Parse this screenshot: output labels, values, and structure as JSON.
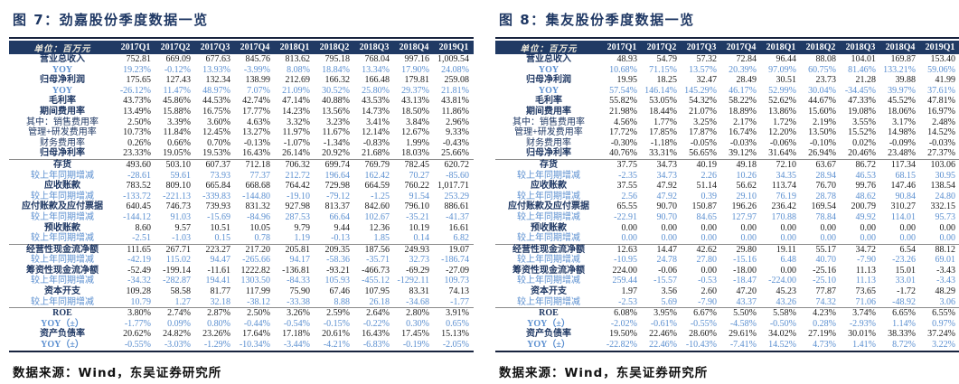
{
  "colors": {
    "navy": "#1F3864",
    "header_bg": "#203A64",
    "blue": "#5B8FD0",
    "rule": "#18243F"
  },
  "unit_label": "单位：百万元",
  "source_label": "数据来源：Wind，东吴证券研究所",
  "columns": [
    "2017Q1",
    "2017Q2",
    "2017Q3",
    "2017Q4",
    "2018Q1",
    "2018Q2",
    "2018Q3",
    "2018Q4",
    "2019Q1"
  ],
  "tables": [
    {
      "title": "图 7：劲嘉股份季度数据一览",
      "rows": [
        {
          "label": "营业总收入",
          "type": "metric",
          "values": [
            "752.81",
            "669.09",
            "677.63",
            "845.76",
            "813.62",
            "795.18",
            "768.04",
            "997.16",
            "1,009.54"
          ]
        },
        {
          "label": "YOY",
          "type": "yoy",
          "values": [
            "19.23%",
            "-0.12%",
            "13.93%",
            "-3.99%",
            "8.08%",
            "18.84%",
            "13.34%",
            "17.90%",
            "24.08%"
          ]
        },
        {
          "label": "归母净利润",
          "type": "metric",
          "values": [
            "175.65",
            "127.43",
            "132.34",
            "138.99",
            "212.69",
            "166.32",
            "166.48",
            "179.81",
            "259.08"
          ]
        },
        {
          "label": "YOY",
          "type": "yoy",
          "values": [
            "-26.12%",
            "11.47%",
            "48.97%",
            "7.07%",
            "21.09%",
            "30.52%",
            "25.80%",
            "29.37%",
            "21.81%"
          ]
        },
        {
          "label": "毛利率",
          "type": "metric",
          "values": [
            "43.73%",
            "45.86%",
            "44.53%",
            "42.74%",
            "47.14%",
            "40.88%",
            "43.53%",
            "43.13%",
            "43.81%"
          ]
        },
        {
          "label": "期间费用率",
          "type": "metric",
          "values": [
            "13.49%",
            "15.88%",
            "16.75%",
            "17.77%",
            "14.23%",
            "13.56%",
            "14.73%",
            "18.50%",
            "11.86%"
          ]
        },
        {
          "label": "其中：销售费用率",
          "type": "sub",
          "values": [
            "2.50%",
            "3.39%",
            "3.60%",
            "4.63%",
            "3.32%",
            "3.23%",
            "3.41%",
            "3.84%",
            "2.96%"
          ]
        },
        {
          "label": "管理+研发费用率",
          "type": "sub",
          "values": [
            "10.73%",
            "11.84%",
            "12.45%",
            "13.27%",
            "11.97%",
            "11.67%",
            "12.14%",
            "12.67%",
            "9.33%"
          ]
        },
        {
          "label": "财务费用率",
          "type": "sub",
          "values": [
            "0.26%",
            "0.66%",
            "0.70%",
            "-0.13%",
            "-1.07%",
            "-1.34%",
            "-0.83%",
            "1.99%",
            "-0.43%"
          ]
        },
        {
          "label": "归母净利率",
          "type": "metric",
          "rule": true,
          "values": [
            "23.33%",
            "19.05%",
            "19.53%",
            "16.43%",
            "26.14%",
            "20.92%",
            "21.68%",
            "18.03%",
            "25.66%"
          ]
        },
        {
          "label": "存货",
          "type": "metric",
          "values": [
            "493.60",
            "503.10",
            "607.37",
            "712.18",
            "706.32",
            "699.74",
            "769.79",
            "782.45",
            "620.72"
          ]
        },
        {
          "label": "较上年同期增减",
          "type": "delta",
          "values": [
            "-28.61",
            "59.61",
            "73.93",
            "77.37",
            "212.72",
            "196.64",
            "162.42",
            "70.27",
            "-85.60"
          ]
        },
        {
          "label": "应收账款",
          "type": "metric",
          "values": [
            "783.52",
            "809.10",
            "665.84",
            "668.68",
            "764.42",
            "729.98",
            "664.59",
            "760.22",
            "1,017.71"
          ]
        },
        {
          "label": "较上年同期增减",
          "type": "delta",
          "values": [
            "-133.72",
            "-221.13",
            "-339.83",
            "-144.80",
            "-19.10",
            "-79.12",
            "-1.25",
            "91.54",
            "253.29"
          ]
        },
        {
          "label": "应付账款及应付票据",
          "type": "metric",
          "values": [
            "640.45",
            "746.73",
            "739.93",
            "831.32",
            "927.98",
            "813.37",
            "842.60",
            "796.10",
            "886.61"
          ]
        },
        {
          "label": "较上年同期增减",
          "type": "delta",
          "values": [
            "-144.12",
            "91.03",
            "-15.69",
            "-84.96",
            "287.53",
            "66.64",
            "102.67",
            "-35.21",
            "-41.37"
          ]
        },
        {
          "label": "预收账款",
          "type": "metric",
          "values": [
            "8.60",
            "9.57",
            "10.51",
            "10.05",
            "9.79",
            "9.44",
            "12.36",
            "10.19",
            "16.61"
          ]
        },
        {
          "label": "较上年同期增减",
          "type": "delta",
          "rule": true,
          "values": [
            "-2.51",
            "-1.03",
            "0.15",
            "0.78",
            "1.19",
            "-0.13",
            "1.85",
            "0.14",
            "6.82"
          ]
        },
        {
          "label": "经营性现金流净额",
          "type": "metric",
          "values": [
            "111.65",
            "267.71",
            "223.27",
            "217.20",
            "205.81",
            "209.35",
            "187.56",
            "249.93",
            "19.07"
          ]
        },
        {
          "label": "较上年同期增减",
          "type": "delta",
          "values": [
            "-42.19",
            "115.02",
            "94.47",
            "-265.66",
            "94.17",
            "-58.36",
            "-35.71",
            "32.73",
            "-186.74"
          ]
        },
        {
          "label": "筹资性现金流净额",
          "type": "metric",
          "values": [
            "-52.49",
            "-199.14",
            "-11.61",
            "1222.82",
            "-136.81",
            "-93.21",
            "-466.73",
            "-69.29",
            "-27.09"
          ]
        },
        {
          "label": "较上年同期增减",
          "type": "delta",
          "values": [
            "-34.32",
            "-282.87",
            "194.41",
            "1303.50",
            "-84.33",
            "105.93",
            "-455.12",
            "-1292.11",
            "109.73"
          ]
        },
        {
          "label": "资本开支",
          "type": "metric",
          "values": [
            "109.28",
            "58.58",
            "81.77",
            "117.99",
            "75.90",
            "67.46",
            "107.95",
            "83.31",
            "74.13"
          ]
        },
        {
          "label": "较上年同期增减",
          "type": "delta",
          "rule": true,
          "values": [
            "10.79",
            "1.27",
            "32.18",
            "-38.12",
            "-33.38",
            "8.88",
            "26.18",
            "-34.68",
            "-1.77"
          ]
        },
        {
          "label": "ROE",
          "type": "metric",
          "values": [
            "3.80%",
            "2.74%",
            "2.87%",
            "2.50%",
            "3.26%",
            "2.59%",
            "2.64%",
            "2.80%",
            "3.91%"
          ]
        },
        {
          "label": "YOY（±）",
          "type": "yoy",
          "values": [
            "-1.77%",
            "0.09%",
            "0.80%",
            "-0.44%",
            "-0.54%",
            "-0.15%",
            "-0.22%",
            "0.30%",
            "0.65%"
          ]
        },
        {
          "label": "资产负债率",
          "type": "metric",
          "values": [
            "20.62%",
            "24.82%",
            "23.26%",
            "17.64%",
            "17.18%",
            "20.61%",
            "16.43%",
            "17.45%",
            "15.13%"
          ]
        },
        {
          "label": "YOY（±）",
          "type": "yoy",
          "values": [
            "-0.55%",
            "-3.03%",
            "-1.29%",
            "-10.34%",
            "-3.44%",
            "-4.21%",
            "-6.83%",
            "-0.19%",
            "-2.05%"
          ]
        }
      ]
    },
    {
      "title": "图 8：集友股份季度数据一览",
      "rows": [
        {
          "label": "营业总收入",
          "type": "metric",
          "values": [
            "48.93",
            "54.79",
            "57.32",
            "72.84",
            "96.44",
            "88.08",
            "104.01",
            "169.87",
            "153.40"
          ]
        },
        {
          "label": "YOY",
          "type": "yoy",
          "values": [
            "10.68%",
            "71.15%",
            "13.57%",
            "20.39%",
            "97.09%",
            "60.75%",
            "81.46%",
            "133.21%",
            "59.06%"
          ]
        },
        {
          "label": "归母净利润",
          "type": "metric",
          "values": [
            "19.95",
            "18.25",
            "32.47",
            "28.49",
            "30.51",
            "23.73",
            "21.28",
            "39.88",
            "41.99"
          ]
        },
        {
          "label": "YOY",
          "type": "yoy",
          "values": [
            "57.54%",
            "146.14%",
            "145.29%",
            "46.17%",
            "52.99%",
            "30.04%",
            "-34.45%",
            "39.97%",
            "37.61%"
          ]
        },
        {
          "label": "毛利率",
          "type": "metric",
          "values": [
            "55.82%",
            "53.05%",
            "54.32%",
            "58.22%",
            "52.62%",
            "44.67%",
            "47.33%",
            "45.52%",
            "47.81%"
          ]
        },
        {
          "label": "期间费用率",
          "type": "metric",
          "values": [
            "21.98%",
            "18.44%",
            "21.07%",
            "18.89%",
            "13.86%",
            "15.60%",
            "19.08%",
            "18.06%",
            "16.97%"
          ]
        },
        {
          "label": "其中：销售费用率",
          "type": "sub",
          "values": [
            "4.56%",
            "1.77%",
            "3.25%",
            "2.17%",
            "1.72%",
            "2.19%",
            "3.55%",
            "3.17%",
            "2.48%"
          ]
        },
        {
          "label": "管理+研发费用率",
          "type": "sub",
          "values": [
            "17.72%",
            "17.85%",
            "17.87%",
            "16.74%",
            "12.20%",
            "13.50%",
            "15.52%",
            "14.98%",
            "14.52%"
          ]
        },
        {
          "label": "财务费用率",
          "type": "sub",
          "values": [
            "-0.30%",
            "-1.18%",
            "-0.05%",
            "-0.03%",
            "-0.06%",
            "-0.10%",
            "0.02%",
            "-0.09%",
            "-0.03%"
          ]
        },
        {
          "label": "归母净利率",
          "type": "metric",
          "rule": true,
          "values": [
            "40.76%",
            "33.31%",
            "56.65%",
            "39.12%",
            "31.64%",
            "26.94%",
            "20.46%",
            "23.48%",
            "27.37%"
          ]
        },
        {
          "label": "存货",
          "type": "metric",
          "values": [
            "37.75",
            "34.73",
            "40.19",
            "49.18",
            "72.10",
            "63.67",
            "86.72",
            "117.34",
            "103.06"
          ]
        },
        {
          "label": "较上年同期增减",
          "type": "delta",
          "values": [
            "-2.35",
            "34.73",
            "2.26",
            "10.26",
            "34.35",
            "28.94",
            "46.53",
            "68.15",
            "30.95"
          ]
        },
        {
          "label": "应收账款",
          "type": "metric",
          "values": [
            "37.55",
            "47.92",
            "51.14",
            "56.62",
            "113.74",
            "76.70",
            "99.76",
            "147.46",
            "138.54"
          ]
        },
        {
          "label": "较上年同期增减",
          "type": "delta",
          "values": [
            "2.56",
            "47.92",
            "0.39",
            "29.10",
            "76.19",
            "28.78",
            "48.62",
            "90.84",
            "24.80"
          ]
        },
        {
          "label": "应付账款及应付票据",
          "type": "metric",
          "values": [
            "65.55",
            "90.70",
            "150.87",
            "196.26",
            "236.42",
            "169.54",
            "200.79",
            "310.27",
            "332.15"
          ]
        },
        {
          "label": "较上年同期增减",
          "type": "delta",
          "values": [
            "-22.91",
            "90.70",
            "84.65",
            "127.97",
            "170.88",
            "78.84",
            "49.92",
            "114.01",
            "95.73"
          ]
        },
        {
          "label": "预收账款",
          "type": "metric",
          "values": [
            "0.00",
            "0.00",
            "0.00",
            "0.00",
            "0.00",
            "0.00",
            "0.00",
            "0.00",
            "0.00"
          ]
        },
        {
          "label": "较上年同期增减",
          "type": "delta",
          "rule": true,
          "values": [
            "0.00",
            "0.00",
            "0.00",
            "0.00",
            "0.00",
            "0.00",
            "0.00",
            "0.00",
            "0.00"
          ]
        },
        {
          "label": "经营性现金流净额",
          "type": "metric",
          "values": [
            "12.63",
            "14.47",
            "42.62",
            "29.80",
            "19.11",
            "55.17",
            "34.72",
            "6.54",
            "88.12"
          ]
        },
        {
          "label": "较上年同期增减",
          "type": "delta",
          "values": [
            "-10.95",
            "24.78",
            "27.80",
            "-15.16",
            "6.48",
            "40.70",
            "-7.90",
            "-23.26",
            "69.01"
          ]
        },
        {
          "label": "筹资性现金流净额",
          "type": "metric",
          "values": [
            "224.00",
            "-0.06",
            "0.00",
            "-18.00",
            "0.00",
            "-25.16",
            "11.13",
            "15.01",
            "-3.43"
          ]
        },
        {
          "label": "较上年同期增减",
          "type": "delta",
          "values": [
            "259.44",
            "-15.57",
            "-0.53",
            "-18.47",
            "-224.00",
            "-25.10",
            "11.13",
            "33.01",
            "-3.43"
          ]
        },
        {
          "label": "资本开支",
          "type": "metric",
          "values": [
            "1.97",
            "3.56",
            "2.60",
            "47.20",
            "45.23",
            "77.87",
            "73.65",
            "-1.72",
            "48.29"
          ]
        },
        {
          "label": "较上年同期增减",
          "type": "delta",
          "rule": true,
          "values": [
            "-2.53",
            "5.69",
            "-7.90",
            "43.37",
            "43.26",
            "74.32",
            "71.06",
            "-48.92",
            "3.06"
          ]
        },
        {
          "label": "ROE",
          "type": "metric",
          "values": [
            "6.08%",
            "3.95%",
            "6.67%",
            "5.50%",
            "5.58%",
            "4.23%",
            "3.74%",
            "6.65%",
            "6.55%"
          ]
        },
        {
          "label": "YOY（±）",
          "type": "yoy",
          "values": [
            "-2.02%",
            "-0.61%",
            "-0.55%",
            "-4.58%",
            "-0.50%",
            "0.28%",
            "-2.93%",
            "1.14%",
            "0.97%"
          ]
        },
        {
          "label": "资产负债率",
          "type": "metric",
          "values": [
            "19.50%",
            "22.46%",
            "28.60%",
            "29.61%",
            "34.02%",
            "27.19%",
            "30.01%",
            "38.33%",
            "37.24%"
          ]
        },
        {
          "label": "YOY（±）",
          "type": "yoy",
          "values": [
            "-22.82%",
            "22.46%",
            "-10.43%",
            "-7.41%",
            "14.52%",
            "4.73%",
            "1.41%",
            "8.72%",
            "3.22%"
          ]
        }
      ]
    }
  ]
}
